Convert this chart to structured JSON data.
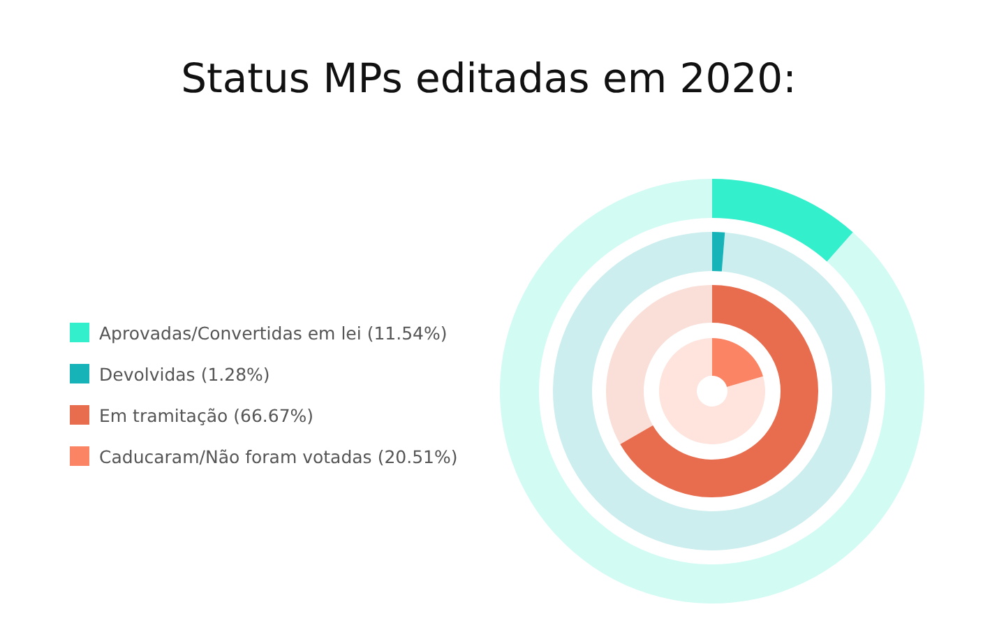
{
  "chart_data": {
    "type": "other",
    "title": "Status MPs editadas em 2020:",
    "categories": [
      "Aprovadas/Convertidas em lei",
      "Devolvidas",
      "Em tramitação",
      "Caducaram/Não foram votadas"
    ],
    "values": [
      11.54,
      1.28,
      66.67,
      20.51
    ],
    "value_labels": [
      "(11.54%)",
      "(1.28%)",
      "(66.67%)",
      "(20.51%)"
    ],
    "colors": [
      "#33efcc",
      "#16b3b8",
      "#e86c4e",
      "#fb8465"
    ]
  }
}
